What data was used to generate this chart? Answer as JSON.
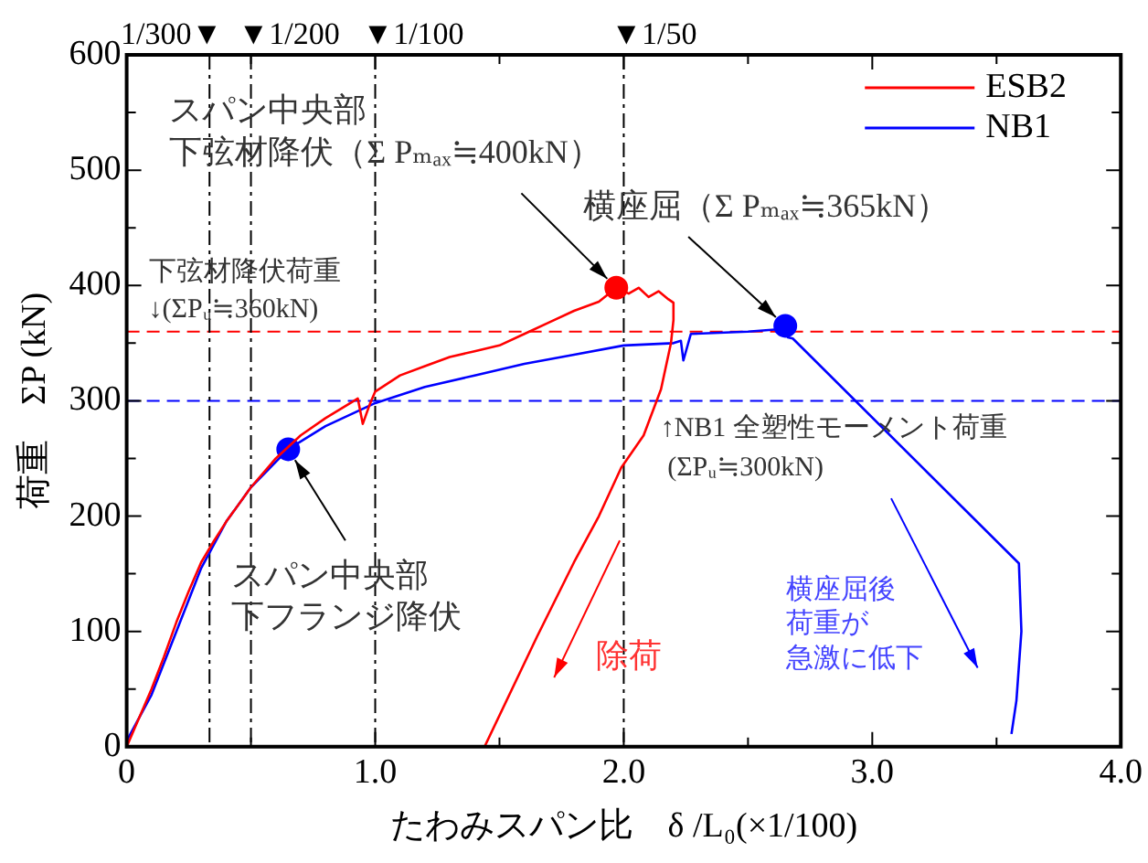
{
  "chart_data": {
    "type": "line",
    "xlabel": "たわみスパン比　δ /L₀(×1/100)",
    "ylabel": "荷重　ΣP (kN)",
    "xlim": [
      0,
      4
    ],
    "xticks": [
      0,
      {
        "value": 0.5,
        "label": null
      },
      {
        "value": 1,
        "label": "1.0"
      },
      {
        "value": 1.5,
        "label": null
      },
      {
        "value": 2,
        "label": "2.0"
      },
      {
        "value": 2.5,
        "label": null
      },
      {
        "value": 3,
        "label": "3.0"
      },
      {
        "value": 3.5,
        "label": null
      },
      {
        "value": 4,
        "label": "4.0"
      }
    ],
    "ylim": [
      0,
      600
    ],
    "yticks": [
      0,
      {
        "value": 50,
        "label": null
      },
      100,
      {
        "value": 150,
        "label": null
      },
      200,
      {
        "value": 250,
        "label": null
      },
      300,
      {
        "value": 350,
        "label": null
      },
      400,
      {
        "value": 450,
        "label": null
      },
      500,
      {
        "value": 550,
        "label": null
      },
      600
    ],
    "grid": false,
    "legend": "top right",
    "marker": "none",
    "line_style": "solid",
    "series": [
      {
        "name": "ESB2",
        "color": "#ff0000",
        "x": [
          0,
          0.05,
          0.1,
          0.15,
          0.2,
          0.25,
          0.3,
          0.35,
          0.4,
          0.5,
          0.6,
          0.7,
          0.8,
          0.9,
          0.93,
          0.95,
          0.98,
          1.0,
          1.1,
          1.2,
          1.3,
          1.4,
          1.5,
          1.6,
          1.7,
          1.8,
          1.9,
          1.97,
          2.02,
          2.06,
          2.1,
          2.14,
          2.18,
          2.2,
          2.2,
          2.19,
          2.15,
          2.08,
          1.99,
          1.9,
          1.8,
          1.65,
          1.44
        ],
        "values": [
          0,
          25,
          50,
          78,
          108,
          135,
          160,
          178,
          195,
          225,
          250,
          270,
          285,
          298,
          302,
          280,
          298,
          308,
          322,
          330,
          338,
          343,
          348,
          358,
          368,
          378,
          386,
          398,
          393,
          398,
          390,
          395,
          388,
          385,
          370,
          350,
          310,
          270,
          242,
          200,
          160,
          95,
          0
        ]
      },
      {
        "name": "NB1",
        "color": "#0000ff",
        "x": [
          0,
          0.1,
          0.2,
          0.3,
          0.4,
          0.5,
          0.65,
          0.8,
          1.0,
          1.2,
          1.4,
          1.6,
          1.8,
          2.0,
          2.2,
          2.23,
          2.24,
          2.27,
          2.5,
          2.62,
          2.65,
          2.66,
          2.68,
          3.59,
          3.6,
          3.58,
          3.56
        ],
        "values": [
          5,
          45,
          100,
          155,
          195,
          225,
          258,
          278,
          298,
          312,
          322,
          332,
          340,
          348,
          350,
          352,
          335,
          358,
          360,
          362,
          365,
          355,
          354,
          159,
          100,
          40,
          11
        ]
      },
      {
        "type": "scatter",
        "marker": "circle",
        "color": "#ff0000",
        "x": [
          1.97
        ],
        "values": [
          398
        ]
      },
      {
        "type": "scatter",
        "marker": "circle",
        "color": "#0000ff",
        "x": [
          0.65,
          2.65
        ],
        "values": [
          258,
          365
        ]
      }
    ],
    "ref_lines": [
      {
        "axis": "y",
        "value": 360,
        "label": "下弦材降伏荷重\n↓(ΣPᵤ≒360kN)",
        "color": "#ff0000",
        "line_style": "dashed"
      },
      {
        "axis": "y",
        "value": 300,
        "label": "↑NB1 全塑性モーメント荷重\n (ΣPᵤ≒300kN)",
        "color": "#0000ff",
        "line_style": "dashed"
      },
      {
        "axis": "x",
        "value": 0.3333,
        "label": "1/300▼",
        "color": "#000000",
        "line_style": "dashdot"
      },
      {
        "axis": "x",
        "value": 0.5,
        "label": "▼1/200",
        "color": "#000000",
        "line_style": "dashdot"
      },
      {
        "axis": "x",
        "value": 1,
        "label": "▼1/100",
        "color": "#000000",
        "line_style": "dashdot"
      },
      {
        "axis": "x",
        "value": 2,
        "label": "▼1/50",
        "color": "#000000",
        "line_style": "dashdot"
      }
    ],
    "annotations": [
      {
        "text": "スパン中央部下弦材降伏（Σ Pₘₐₓ≒400kN）",
        "x": 1.97,
        "y": 398
      },
      {
        "text": "横座屈（Σ Pₘₐₓ≒365kN）",
        "x": 2.65,
        "y": 365
      },
      {
        "text": "スパン中央部下フランジ降伏",
        "x": 0.65,
        "y": 258
      },
      "除荷",
      "横座屈後荷重が急激に低下"
    ]
  }
}
